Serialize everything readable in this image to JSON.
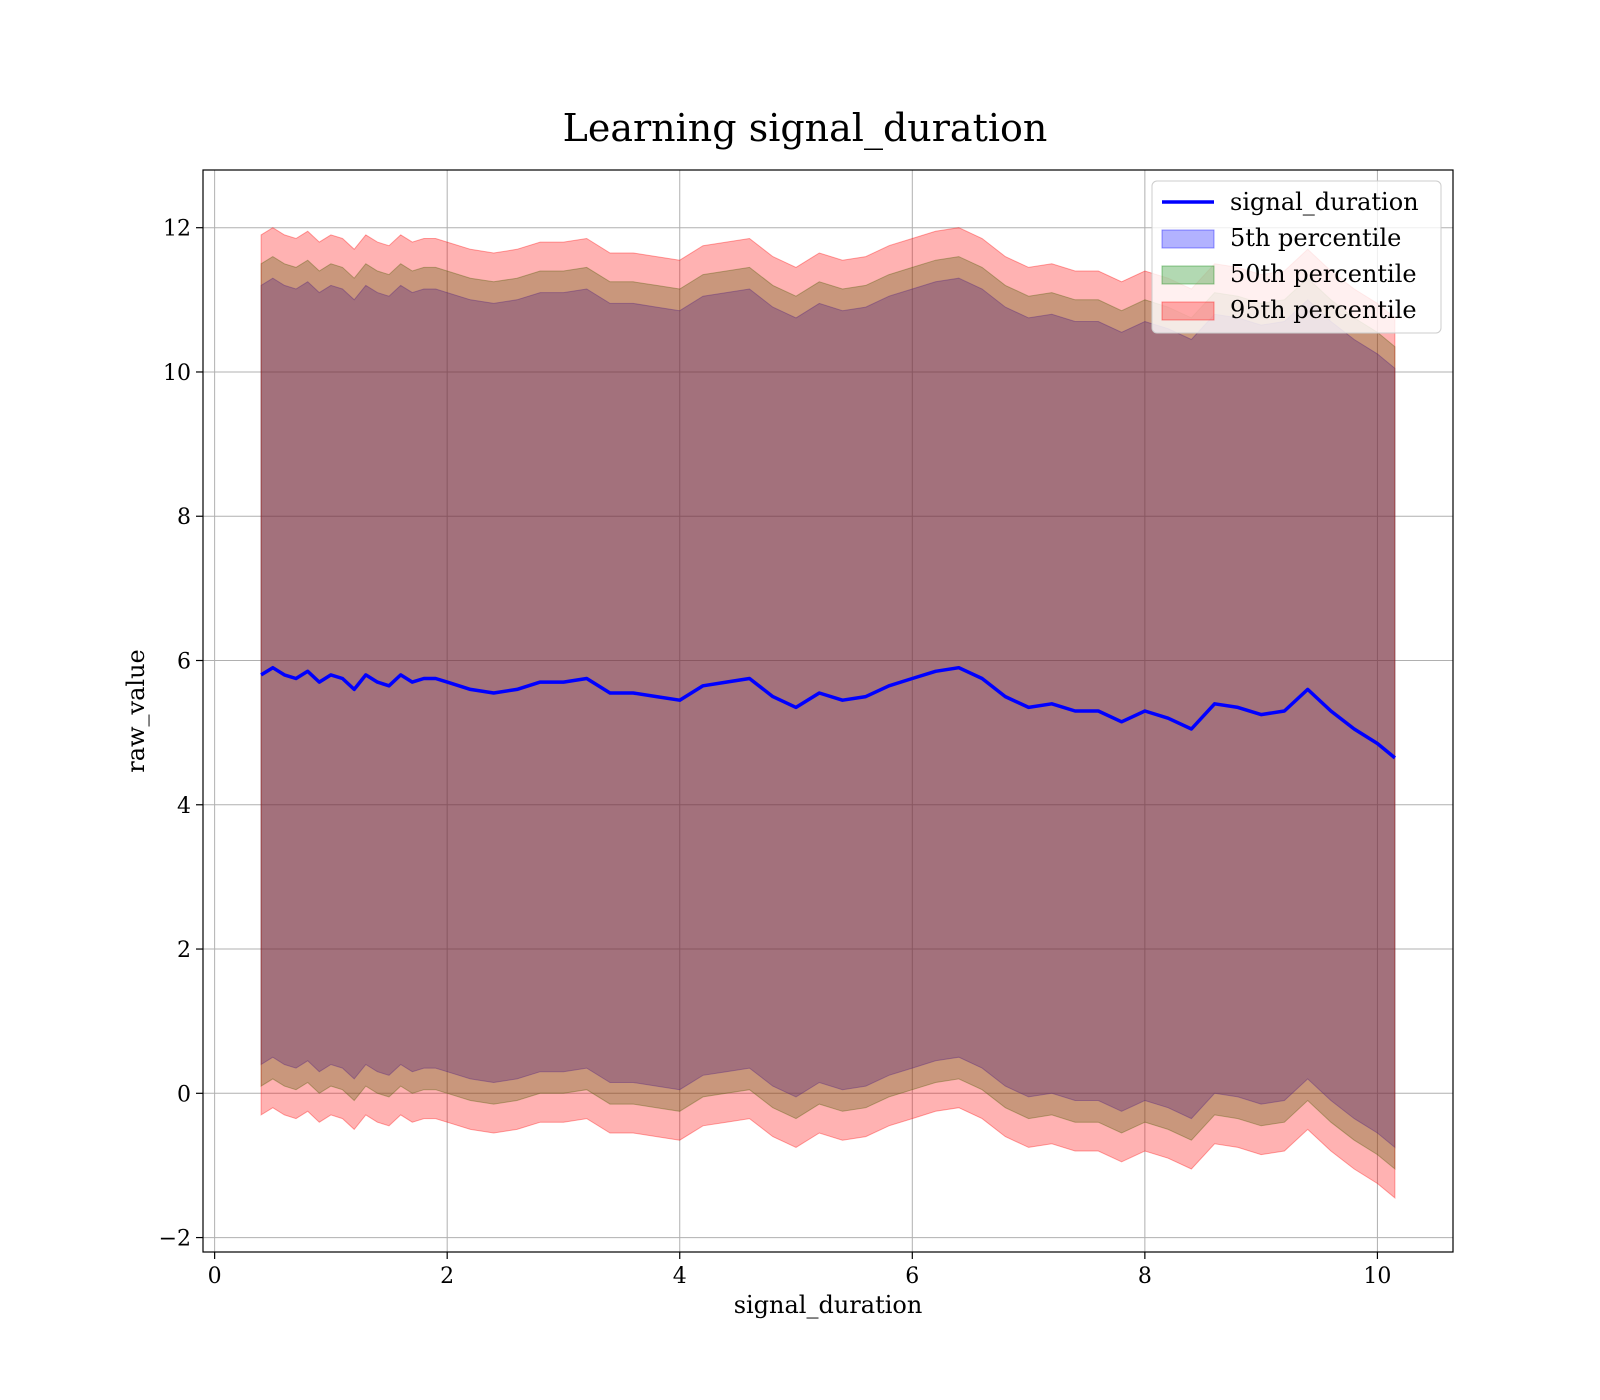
{
  "chart_data": {
    "type": "line",
    "title": "Learning signal_duration",
    "xlabel": "signal_duration",
    "ylabel": "raw_value",
    "xlim": [
      -0.1,
      10.65
    ],
    "ylim": [
      -2.2,
      12.8
    ],
    "xticks": [
      0,
      2,
      4,
      6,
      8,
      10
    ],
    "yticks": [
      -2,
      0,
      2,
      4,
      6,
      8,
      10,
      12
    ],
    "grid": true,
    "legend_position": "top-right",
    "colors": {
      "line": "#0000ff",
      "band_5th": "#0000ff",
      "band_50th": "#008000",
      "band_95th": "#ff0000"
    },
    "series": [
      {
        "name": "signal_duration",
        "role": "line",
        "x": [
          0.4,
          0.5,
          0.6,
          0.7,
          0.8,
          0.9,
          1.0,
          1.1,
          1.2,
          1.3,
          1.4,
          1.5,
          1.6,
          1.7,
          1.8,
          1.9,
          2.0,
          2.2,
          2.4,
          2.6,
          2.8,
          3.0,
          3.2,
          3.4,
          3.6,
          3.8,
          4.0,
          4.2,
          4.4,
          4.6,
          4.8,
          5.0,
          5.2,
          5.4,
          5.6,
          5.8,
          6.0,
          6.2,
          6.4,
          6.6,
          6.8,
          7.0,
          7.2,
          7.4,
          7.6,
          7.8,
          8.0,
          8.2,
          8.4,
          8.6,
          8.8,
          9.0,
          9.2,
          9.4,
          9.6,
          9.8,
          10.0,
          10.15
        ],
        "y": [
          5.8,
          5.9,
          5.8,
          5.75,
          5.85,
          5.7,
          5.8,
          5.75,
          5.6,
          5.8,
          5.7,
          5.65,
          5.8,
          5.7,
          5.75,
          5.75,
          5.7,
          5.6,
          5.55,
          5.6,
          5.7,
          5.7,
          5.75,
          5.55,
          5.55,
          5.5,
          5.45,
          5.65,
          5.7,
          5.75,
          5.5,
          5.35,
          5.55,
          5.45,
          5.5,
          5.65,
          5.75,
          5.85,
          5.9,
          5.75,
          5.5,
          5.35,
          5.4,
          5.3,
          5.3,
          5.15,
          5.3,
          5.2,
          5.05,
          5.4,
          5.35,
          5.25,
          5.3,
          5.6,
          5.3,
          5.05,
          4.85,
          4.65
        ]
      },
      {
        "name": "5th percentile",
        "role": "band",
        "x": [
          0.4,
          0.5,
          0.6,
          0.7,
          0.8,
          0.9,
          1.0,
          1.1,
          1.2,
          1.3,
          1.4,
          1.5,
          1.6,
          1.7,
          1.8,
          1.9,
          2.0,
          2.2,
          2.4,
          2.6,
          2.8,
          3.0,
          3.2,
          3.4,
          3.6,
          3.8,
          4.0,
          4.2,
          4.4,
          4.6,
          4.8,
          5.0,
          5.2,
          5.4,
          5.6,
          5.8,
          6.0,
          6.2,
          6.4,
          6.6,
          6.8,
          7.0,
          7.2,
          7.4,
          7.6,
          7.8,
          8.0,
          8.2,
          8.4,
          8.6,
          8.8,
          9.0,
          9.2,
          9.4,
          9.6,
          9.8,
          10.0,
          10.15
        ],
        "lower": [
          0.4,
          0.5,
          0.4,
          0.35,
          0.45,
          0.3,
          0.4,
          0.35,
          0.2,
          0.4,
          0.3,
          0.25,
          0.4,
          0.3,
          0.35,
          0.35,
          0.3,
          0.2,
          0.15,
          0.2,
          0.3,
          0.3,
          0.35,
          0.15,
          0.15,
          0.1,
          0.05,
          0.25,
          0.3,
          0.35,
          0.1,
          -0.05,
          0.15,
          0.05,
          0.1,
          0.25,
          0.35,
          0.45,
          0.5,
          0.35,
          0.1,
          -0.05,
          0.0,
          -0.1,
          -0.1,
          -0.25,
          -0.1,
          -0.2,
          -0.35,
          0.0,
          -0.05,
          -0.15,
          -0.1,
          0.2,
          -0.1,
          -0.35,
          -0.55,
          -0.75
        ],
        "upper": [
          11.2,
          11.3,
          11.2,
          11.15,
          11.25,
          11.1,
          11.2,
          11.15,
          11.0,
          11.2,
          11.1,
          11.05,
          11.2,
          11.1,
          11.15,
          11.15,
          11.1,
          11.0,
          10.95,
          11.0,
          11.1,
          11.1,
          11.15,
          10.95,
          10.95,
          10.9,
          10.85,
          11.05,
          11.1,
          11.15,
          10.9,
          10.75,
          10.95,
          10.85,
          10.9,
          11.05,
          11.15,
          11.25,
          11.3,
          11.15,
          10.9,
          10.75,
          10.8,
          10.7,
          10.7,
          10.55,
          10.7,
          10.6,
          10.45,
          10.8,
          10.75,
          10.65,
          10.7,
          11.0,
          10.7,
          10.45,
          10.25,
          10.05
        ]
      },
      {
        "name": "50th percentile",
        "role": "band",
        "x": [
          0.4,
          0.5,
          0.6,
          0.7,
          0.8,
          0.9,
          1.0,
          1.1,
          1.2,
          1.3,
          1.4,
          1.5,
          1.6,
          1.7,
          1.8,
          1.9,
          2.0,
          2.2,
          2.4,
          2.6,
          2.8,
          3.0,
          3.2,
          3.4,
          3.6,
          3.8,
          4.0,
          4.2,
          4.4,
          4.6,
          4.8,
          5.0,
          5.2,
          5.4,
          5.6,
          5.8,
          6.0,
          6.2,
          6.4,
          6.6,
          6.8,
          7.0,
          7.2,
          7.4,
          7.6,
          7.8,
          8.0,
          8.2,
          8.4,
          8.6,
          8.8,
          9.0,
          9.2,
          9.4,
          9.6,
          9.8,
          10.0,
          10.15
        ],
        "lower": [
          0.1,
          0.2,
          0.1,
          0.05,
          0.15,
          0.0,
          0.1,
          0.05,
          -0.1,
          0.1,
          0.0,
          -0.05,
          0.1,
          0.0,
          0.05,
          0.05,
          0.0,
          -0.1,
          -0.15,
          -0.1,
          0.0,
          0.0,
          0.05,
          -0.15,
          -0.15,
          -0.2,
          -0.25,
          -0.05,
          0.0,
          0.05,
          -0.2,
          -0.35,
          -0.15,
          -0.25,
          -0.2,
          -0.05,
          0.05,
          0.15,
          0.2,
          0.05,
          -0.2,
          -0.35,
          -0.3,
          -0.4,
          -0.4,
          -0.55,
          -0.4,
          -0.5,
          -0.65,
          -0.3,
          -0.35,
          -0.45,
          -0.4,
          -0.1,
          -0.4,
          -0.65,
          -0.85,
          -1.05
        ],
        "upper": [
          11.5,
          11.6,
          11.5,
          11.45,
          11.55,
          11.4,
          11.5,
          11.45,
          11.3,
          11.5,
          11.4,
          11.35,
          11.5,
          11.4,
          11.45,
          11.45,
          11.4,
          11.3,
          11.25,
          11.3,
          11.4,
          11.4,
          11.45,
          11.25,
          11.25,
          11.2,
          11.15,
          11.35,
          11.4,
          11.45,
          11.2,
          11.05,
          11.25,
          11.15,
          11.2,
          11.35,
          11.45,
          11.55,
          11.6,
          11.45,
          11.2,
          11.05,
          11.1,
          11.0,
          11.0,
          10.85,
          11.0,
          10.9,
          10.75,
          11.1,
          11.05,
          10.95,
          11.0,
          11.3,
          11.0,
          10.75,
          10.55,
          10.35
        ]
      },
      {
        "name": "95th percentile",
        "role": "band",
        "x": [
          0.4,
          0.5,
          0.6,
          0.7,
          0.8,
          0.9,
          1.0,
          1.1,
          1.2,
          1.3,
          1.4,
          1.5,
          1.6,
          1.7,
          1.8,
          1.9,
          2.0,
          2.2,
          2.4,
          2.6,
          2.8,
          3.0,
          3.2,
          3.4,
          3.6,
          3.8,
          4.0,
          4.2,
          4.4,
          4.6,
          4.8,
          5.0,
          5.2,
          5.4,
          5.6,
          5.8,
          6.0,
          6.2,
          6.4,
          6.6,
          6.8,
          7.0,
          7.2,
          7.4,
          7.6,
          7.8,
          8.0,
          8.2,
          8.4,
          8.6,
          8.8,
          9.0,
          9.2,
          9.4,
          9.6,
          9.8,
          10.0,
          10.15
        ],
        "lower": [
          -0.3,
          -0.2,
          -0.3,
          -0.35,
          -0.25,
          -0.4,
          -0.3,
          -0.35,
          -0.5,
          -0.3,
          -0.4,
          -0.45,
          -0.3,
          -0.4,
          -0.35,
          -0.35,
          -0.4,
          -0.5,
          -0.55,
          -0.5,
          -0.4,
          -0.4,
          -0.35,
          -0.55,
          -0.55,
          -0.6,
          -0.65,
          -0.45,
          -0.4,
          -0.35,
          -0.6,
          -0.75,
          -0.55,
          -0.65,
          -0.6,
          -0.45,
          -0.35,
          -0.25,
          -0.2,
          -0.35,
          -0.6,
          -0.75,
          -0.7,
          -0.8,
          -0.8,
          -0.95,
          -0.8,
          -0.9,
          -1.05,
          -0.7,
          -0.75,
          -0.85,
          -0.8,
          -0.5,
          -0.8,
          -1.05,
          -1.25,
          -1.45
        ],
        "upper": [
          11.9,
          12.0,
          11.9,
          11.85,
          11.95,
          11.8,
          11.9,
          11.85,
          11.7,
          11.9,
          11.8,
          11.75,
          11.9,
          11.8,
          11.85,
          11.85,
          11.8,
          11.7,
          11.65,
          11.7,
          11.8,
          11.8,
          11.85,
          11.65,
          11.65,
          11.6,
          11.55,
          11.75,
          11.8,
          11.85,
          11.6,
          11.45,
          11.65,
          11.55,
          11.6,
          11.75,
          11.85,
          11.95,
          12.0,
          11.85,
          11.6,
          11.45,
          11.5,
          11.4,
          11.4,
          11.25,
          11.4,
          11.3,
          11.15,
          11.5,
          11.45,
          11.35,
          11.4,
          11.7,
          11.4,
          11.15,
          10.95,
          10.75
        ]
      }
    ]
  }
}
